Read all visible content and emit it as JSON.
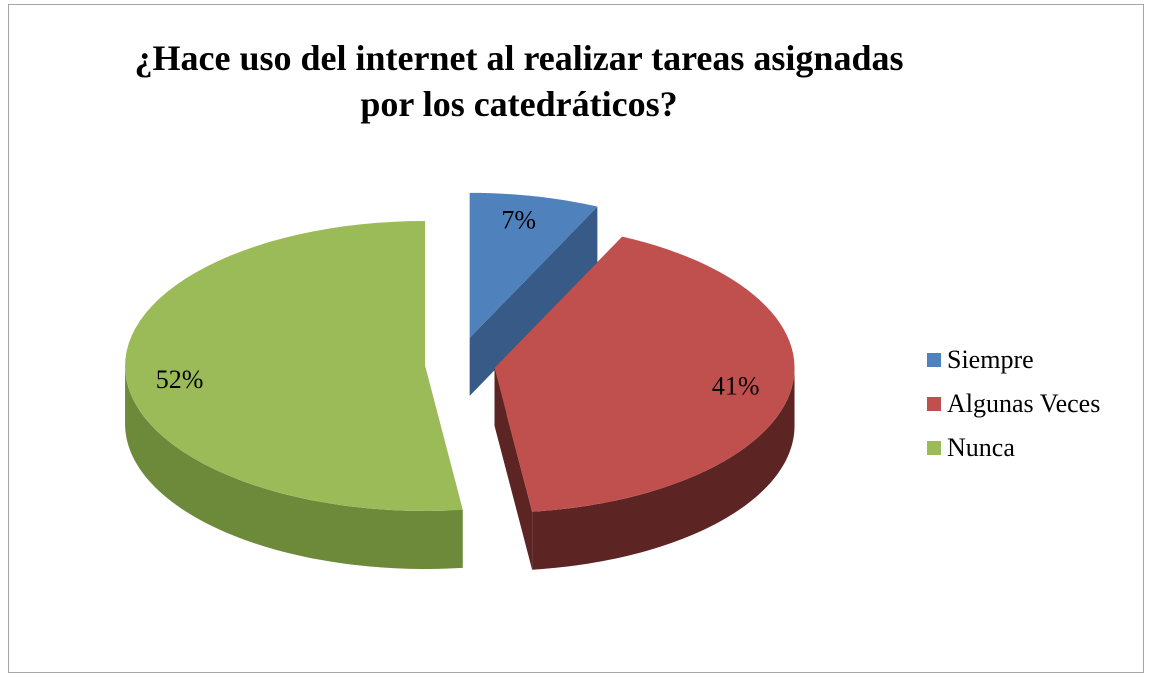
{
  "chart_data": {
    "type": "pie",
    "title": "¿Hace uso del internet al realizar tareas asignadas por los catedráticos?",
    "categories": [
      "Siempre",
      "Algunas Veces",
      "Nunca"
    ],
    "values": [
      7,
      41,
      52
    ],
    "data_labels": [
      "7%",
      "41%",
      "52%"
    ],
    "colors": [
      "#4f81bd",
      "#c0504d",
      "#9bbb59"
    ],
    "side_colors": [
      "#375a86",
      "#5c2524",
      "#6d8a3a"
    ],
    "legend_position": "right",
    "exploded": true,
    "three_d": true
  }
}
